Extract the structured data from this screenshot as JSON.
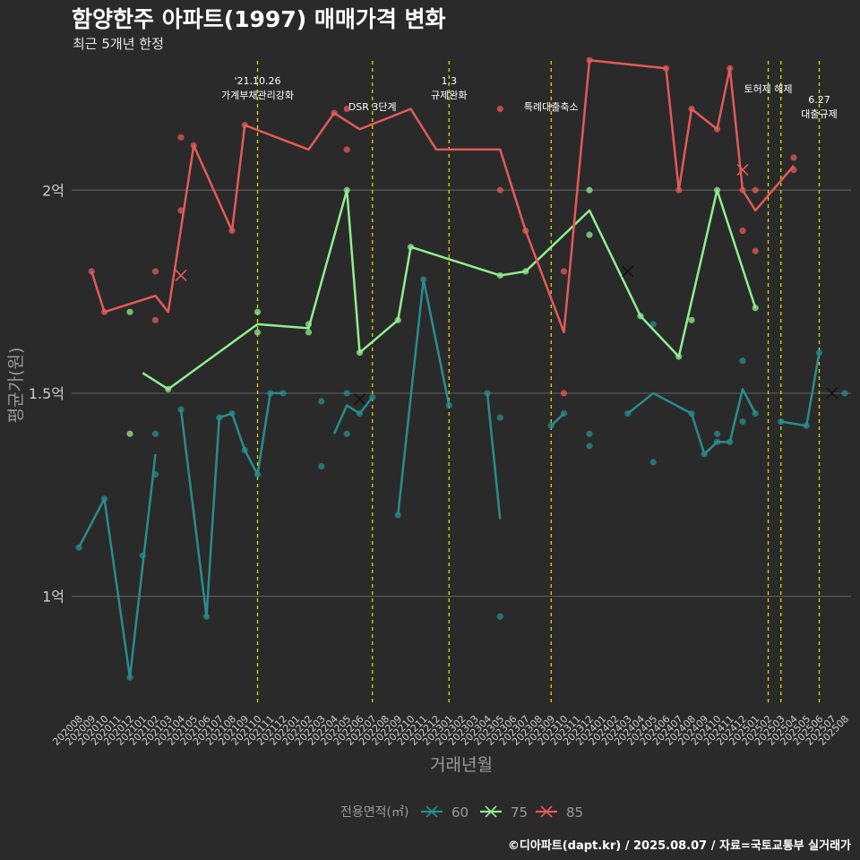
{
  "title": "함양한주 아파트(1997) 매매가격 변화",
  "subtitle": "최근 5개년 한정",
  "caption": "©디아파트(dapt.kr) / 2025.08.07 / 자료=국토교통부 실거래가",
  "colors": {
    "background": "#2a2a2a",
    "grid": "#5a5a5a",
    "event_line": "#e6e600",
    "s60": "#2a8c8c",
    "s75": "#90ee90",
    "s85": "#e45a5a",
    "axis_text": "#9a9a9a"
  },
  "chart_data": {
    "type": "line",
    "xlabel": "거래년월",
    "ylabel": "평균가(원)",
    "legend_title": "전용면적(㎡)",
    "legend_position": "bottom",
    "x_categories": [
      "202008",
      "202009",
      "202010",
      "202011",
      "202012",
      "202101",
      "202102",
      "202103",
      "202104",
      "202105",
      "202106",
      "202107",
      "202108",
      "202109",
      "202110",
      "202111",
      "202112",
      "202201",
      "202202",
      "202203",
      "202204",
      "202205",
      "202206",
      "202207",
      "202208",
      "202209",
      "202210",
      "202211",
      "202212",
      "202301",
      "202302",
      "202303",
      "202304",
      "202305",
      "202306",
      "202307",
      "202308",
      "202309",
      "202310",
      "202311",
      "202312",
      "202401",
      "202402",
      "202403",
      "202404",
      "202405",
      "202406",
      "202407",
      "202408",
      "202409",
      "202410",
      "202411",
      "202412",
      "202501",
      "202502",
      "202503",
      "202504",
      "202505",
      "202506",
      "202507",
      "202508"
    ],
    "y_ticks": [
      {
        "value": 10000,
        "label": "1억"
      },
      {
        "value": 15000,
        "label": "1.5억"
      },
      {
        "value": 20000,
        "label": "2억"
      }
    ],
    "y_unit": "만원",
    "ylim": [
      7300,
      23800
    ],
    "grid": true,
    "events": [
      {
        "x": "202110",
        "label": "'21.10.26\n가계부채관리강화",
        "row": 1
      },
      {
        "x": "202207",
        "label": "DSR 3단계",
        "row": 2
      },
      {
        "x": "202301",
        "label": "1.3\n규제완화",
        "row": 1
      },
      {
        "x": "202309",
        "label": "특례대출축소",
        "row": 2
      },
      {
        "x": "202502",
        "label": "토허제 해제",
        "row": 1
      },
      {
        "x": "202503",
        "label": "",
        "row": 1
      },
      {
        "x": "202506",
        "label": "6.27\n대출규제",
        "row": 2
      }
    ],
    "series": [
      {
        "name": "60",
        "line": [
          [
            "202008",
            11200
          ],
          [
            "202010",
            12400
          ],
          [
            "202012",
            8000
          ],
          [
            "202102",
            13500
          ],
          null,
          [
            "202104",
            14600
          ],
          [
            "202106",
            9500
          ],
          [
            "202107",
            14400
          ],
          [
            "202108",
            14500
          ],
          [
            "202109",
            13600
          ],
          [
            "202110",
            13000
          ],
          [
            "202111",
            15000
          ],
          [
            "202112",
            15000
          ],
          null,
          [
            "202204",
            14000
          ],
          [
            "202205",
            14700
          ],
          [
            "202206",
            14500
          ],
          [
            "202207",
            14900
          ],
          null,
          [
            "202209",
            12000
          ],
          [
            "202211",
            17800
          ],
          [
            "202301",
            14700
          ],
          null,
          [
            "202304",
            15000
          ],
          [
            "202305",
            11900
          ],
          null,
          [
            "202309",
            14200
          ],
          [
            "202310",
            14500
          ],
          null,
          [
            "202403",
            14500
          ],
          [
            "202405",
            15000
          ],
          [
            "202408",
            14500
          ],
          [
            "202409",
            13500
          ],
          [
            "202410",
            13800
          ],
          [
            "202411",
            13800
          ],
          [
            "202412",
            15100
          ],
          [
            "202501",
            14500
          ],
          null,
          [
            "202503",
            14300
          ],
          [
            "202505",
            14200
          ],
          [
            "202506",
            16000
          ]
        ],
        "points": [
          [
            "202008",
            11200
          ],
          [
            "202010",
            12400
          ],
          [
            "202012",
            8000
          ],
          [
            "202101",
            11000
          ],
          [
            "202102",
            13000
          ],
          [
            "202102",
            14000
          ],
          [
            "202104",
            14600
          ],
          [
            "202106",
            9500
          ],
          [
            "202107",
            14400
          ],
          [
            "202108",
            14500
          ],
          [
            "202109",
            13600
          ],
          [
            "202110",
            13000
          ],
          [
            "202111",
            15000
          ],
          [
            "202112",
            15000
          ],
          [
            "202203",
            13200
          ],
          [
            "202203",
            14800
          ],
          [
            "202205",
            14000
          ],
          [
            "202205",
            15000
          ],
          [
            "202206",
            14500
          ],
          [
            "202207",
            14900
          ],
          [
            "202209",
            12000
          ],
          [
            "202211",
            17800
          ],
          [
            "202301",
            14700
          ],
          [
            "202304",
            15000
          ],
          [
            "202305",
            9500
          ],
          [
            "202305",
            14400
          ],
          [
            "202309",
            14200
          ],
          [
            "202310",
            14500
          ],
          [
            "202312",
            13700
          ],
          [
            "202312",
            14000
          ],
          [
            "202403",
            14500
          ],
          [
            "202405",
            13300
          ],
          [
            "202405",
            16700
          ],
          [
            "202408",
            14500
          ],
          [
            "202409",
            13500
          ],
          [
            "202410",
            13800
          ],
          [
            "202410",
            14000
          ],
          [
            "202411",
            13800
          ],
          [
            "202412",
            14300
          ],
          [
            "202412",
            15800
          ],
          [
            "202501",
            14500
          ],
          [
            "202503",
            14300
          ],
          [
            "202505",
            14200
          ],
          [
            "202506",
            16000
          ],
          [
            "202508",
            15000
          ]
        ],
        "markers": [
          [
            "202206",
            14850
          ],
          [
            "202507",
            15000
          ]
        ]
      },
      {
        "name": "75",
        "line": [
          [
            "202101",
            15500
          ],
          [
            "202103",
            15100
          ],
          [
            "202110",
            16700
          ],
          [
            "202202",
            16600
          ],
          [
            "202205",
            20000
          ],
          [
            "202206",
            16000
          ],
          [
            "202209",
            16800
          ],
          [
            "202210",
            18600
          ],
          [
            "202305",
            17900
          ],
          [
            "202307",
            18000
          ],
          [
            "202312",
            19500
          ],
          [
            "202404",
            16900
          ],
          [
            "202407",
            15900
          ],
          [
            "202410",
            20000
          ],
          [
            "202501",
            17100
          ]
        ],
        "points": [
          [
            "202012",
            14000
          ],
          [
            "202012",
            17000
          ],
          [
            "202103",
            15100
          ],
          [
            "202110",
            16500
          ],
          [
            "202110",
            17000
          ],
          [
            "202202",
            16500
          ],
          [
            "202202",
            16700
          ],
          [
            "202205",
            20000
          ],
          [
            "202206",
            16000
          ],
          [
            "202209",
            16800
          ],
          [
            "202210",
            18600
          ],
          [
            "202305",
            17900
          ],
          [
            "202307",
            18000
          ],
          [
            "202312",
            18900
          ],
          [
            "202312",
            20000
          ],
          [
            "202404",
            16900
          ],
          [
            "202407",
            15900
          ],
          [
            "202408",
            16800
          ],
          [
            "202410",
            20000
          ],
          [
            "202501",
            17100
          ]
        ],
        "markers": [
          [
            "202403",
            18000
          ]
        ]
      },
      {
        "name": "85",
        "line": [
          [
            "202009",
            18000
          ],
          [
            "202010",
            17000
          ],
          [
            "202102",
            17400
          ],
          [
            "202103",
            17000
          ],
          [
            "202105",
            21100
          ],
          [
            "202108",
            19000
          ],
          [
            "202109",
            21600
          ],
          [
            "202202",
            21000
          ],
          [
            "202204",
            21900
          ],
          [
            "202206",
            21500
          ],
          [
            "202210",
            22000
          ],
          [
            "202212",
            21000
          ],
          [
            "202305",
            21000
          ],
          [
            "202307",
            19000
          ],
          [
            "202310",
            16500
          ],
          [
            "202312",
            23200
          ],
          [
            "202406",
            23000
          ],
          [
            "202407",
            20000
          ],
          [
            "202408",
            22000
          ],
          [
            "202410",
            21500
          ],
          [
            "202411",
            23000
          ],
          [
            "202412",
            20000
          ],
          [
            "202501",
            19500
          ],
          [
            "202504",
            20600
          ]
        ],
        "points": [
          [
            "202009",
            18000
          ],
          [
            "202010",
            17000
          ],
          [
            "202102",
            16800
          ],
          [
            "202102",
            18000
          ],
          [
            "202104",
            19500
          ],
          [
            "202104",
            21300
          ],
          [
            "202105",
            21100
          ],
          [
            "202108",
            19000
          ],
          [
            "202109",
            21600
          ],
          [
            "202204",
            21900
          ],
          [
            "202205",
            21000
          ],
          [
            "202205",
            22000
          ],
          [
            "202305",
            20000
          ],
          [
            "202305",
            22000
          ],
          [
            "202307",
            19000
          ],
          [
            "202310",
            15000
          ],
          [
            "202310",
            18000
          ],
          [
            "202312",
            23200
          ],
          [
            "202406",
            23000
          ],
          [
            "202407",
            20000
          ],
          [
            "202408",
            22000
          ],
          [
            "202410",
            21500
          ],
          [
            "202411",
            23000
          ],
          [
            "202412",
            19000
          ],
          [
            "202412",
            20000
          ],
          [
            "202501",
            18500
          ],
          [
            "202501",
            20000
          ],
          [
            "202504",
            20500
          ],
          [
            "202504",
            20800
          ]
        ],
        "markers": [
          [
            "202104",
            17900
          ],
          [
            "202412",
            20500
          ]
        ]
      }
    ]
  }
}
